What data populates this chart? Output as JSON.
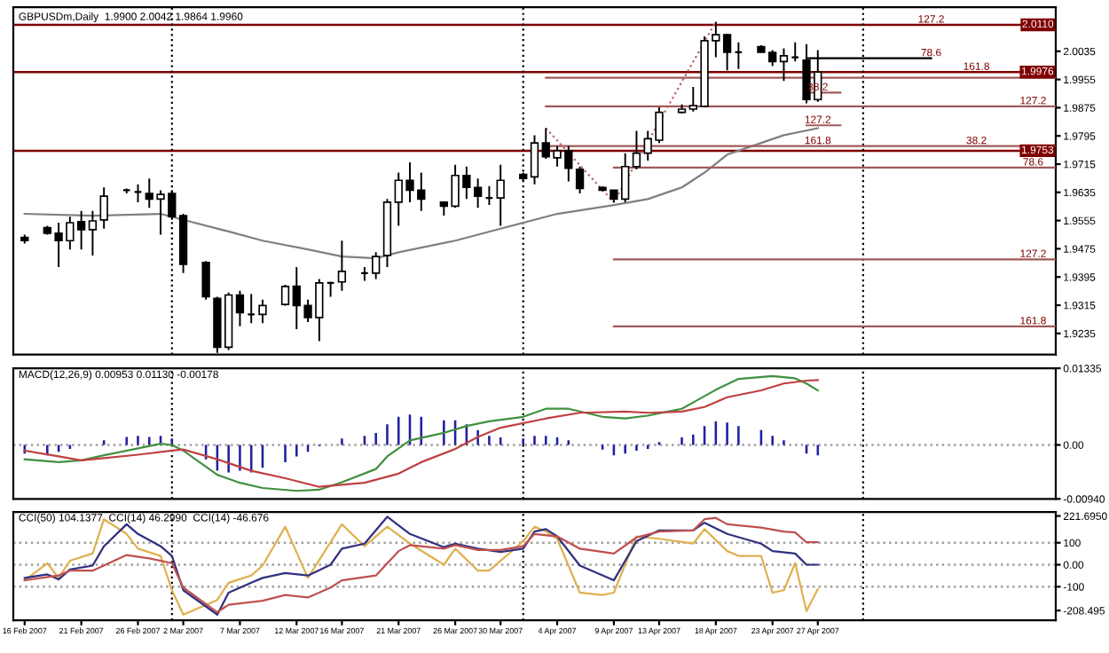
{
  "chart_data": [
    {
      "type": "candlestick",
      "title": "GBPUSDm,Daily  1.9900 2.0042 1.9864 1.9960",
      "tick_labels": "y",
      "x": [
        "2007-02-16",
        "2007-02-18",
        "2007-02-19",
        "2007-02-20",
        "2007-02-21",
        "2007-02-22",
        "2007-02-23",
        "2007-02-25",
        "2007-02-26",
        "2007-02-27",
        "2007-02-28",
        "2007-03-01",
        "2007-03-02",
        "2007-03-04",
        "2007-03-05",
        "2007-03-06",
        "2007-03-07",
        "2007-03-08",
        "2007-03-09",
        "2007-03-11",
        "2007-03-12",
        "2007-03-13",
        "2007-03-14",
        "2007-03-15",
        "2007-03-16",
        "2007-03-18",
        "2007-03-19",
        "2007-03-20",
        "2007-03-21",
        "2007-03-22",
        "2007-03-23",
        "2007-03-25",
        "2007-03-26",
        "2007-03-27",
        "2007-03-28",
        "2007-03-29",
        "2007-03-30",
        "2007-04-01",
        "2007-04-02",
        "2007-04-03",
        "2007-04-04",
        "2007-04-05",
        "2007-04-06",
        "2007-04-08",
        "2007-04-09",
        "2007-04-10",
        "2007-04-11",
        "2007-04-12",
        "2007-04-13",
        "2007-04-15",
        "2007-04-16",
        "2007-04-17",
        "2007-04-18",
        "2007-04-19",
        "2007-04-20",
        "2007-04-22",
        "2007-04-23",
        "2007-04-24",
        "2007-04-25",
        "2007-04-26",
        "2007-04-27"
      ],
      "ohlc": [
        [
          1.9507,
          1.9515,
          1.949,
          1.9498
        ],
        [
          1.9535,
          1.954,
          1.9515,
          1.9519
        ],
        [
          1.9519,
          1.9549,
          1.9423,
          1.9498
        ],
        [
          1.9498,
          1.9566,
          1.9473,
          1.9549
        ],
        [
          1.9552,
          1.9582,
          1.9473,
          1.9529
        ],
        [
          1.9529,
          1.9582,
          1.9456,
          1.9554
        ],
        [
          1.9557,
          1.9649,
          1.9532,
          1.9624
        ],
        [
          1.9641,
          1.9646,
          1.9632,
          1.9641
        ],
        [
          1.9636,
          1.9658,
          1.9607,
          1.9636
        ],
        [
          1.9632,
          1.9674,
          1.9591,
          1.9616
        ],
        [
          1.9616,
          1.9641,
          1.9515,
          1.9629
        ],
        [
          1.9632,
          1.9641,
          1.9557,
          1.9566
        ],
        [
          1.9569,
          1.9574,
          1.9406,
          1.9431
        ],
        [
          1.9436,
          1.944,
          1.9331,
          1.9339
        ],
        [
          1.9334,
          1.9339,
          1.918,
          1.9196
        ],
        [
          1.9196,
          1.9351,
          1.9188,
          1.9344
        ],
        [
          1.9344,
          1.9356,
          1.9255,
          1.9294
        ],
        [
          1.9289,
          1.9347,
          1.9264,
          1.9289
        ],
        [
          1.9289,
          1.9331,
          1.9264,
          1.9314
        ],
        [
          1.9317,
          1.9373,
          1.9314,
          1.9368
        ],
        [
          1.9369,
          1.9423,
          1.9247,
          1.9314
        ],
        [
          1.9314,
          1.9331,
          1.9267,
          1.928
        ],
        [
          1.928,
          1.9389,
          1.9213,
          1.9378
        ],
        [
          1.9378,
          1.9381,
          1.9339,
          1.9378
        ],
        [
          1.9381,
          1.9498,
          1.9356,
          1.9411
        ],
        [
          1.9406,
          1.9423,
          1.9384,
          1.9406
        ],
        [
          1.9406,
          1.9465,
          1.9389,
          1.9453
        ],
        [
          1.9456,
          1.9616,
          1.9423,
          1.9607
        ],
        [
          1.9607,
          1.9691,
          1.954,
          1.9669
        ],
        [
          1.9669,
          1.972,
          1.9607,
          1.9641
        ],
        [
          1.9641,
          1.9691,
          1.9582,
          1.9616
        ],
        [
          1.9607,
          1.9607,
          1.9569,
          1.9596
        ],
        [
          1.9596,
          1.9713,
          1.9591,
          1.9683
        ],
        [
          1.9683,
          1.9708,
          1.9616,
          1.9649
        ],
        [
          1.9649,
          1.9674,
          1.9591,
          1.9624
        ],
        [
          1.9619,
          1.9653,
          1.9599,
          1.9619
        ],
        [
          1.9619,
          1.9713,
          1.954,
          1.9669
        ],
        [
          1.9686,
          1.9691,
          1.9666,
          1.9674
        ],
        [
          1.9679,
          1.9797,
          1.9658,
          1.9775
        ],
        [
          1.9775,
          1.9817,
          1.973,
          1.9736
        ],
        [
          1.9733,
          1.9766,
          1.9708,
          1.9753
        ],
        [
          1.9753,
          1.9766,
          1.9666,
          1.9703
        ],
        [
          1.97,
          1.9708,
          1.9632,
          1.9646
        ],
        [
          1.9649,
          1.9652,
          1.9638,
          1.9641
        ],
        [
          1.9641,
          1.9641,
          1.9607,
          1.9616
        ],
        [
          1.9616,
          1.9746,
          1.9607,
          1.9708
        ],
        [
          1.9708,
          1.9809,
          1.97,
          1.9746
        ],
        [
          1.9746,
          1.9809,
          1.9725,
          1.9787
        ],
        [
          1.9783,
          1.9876,
          1.9775,
          1.9862
        ],
        [
          1.9862,
          1.9884,
          1.9859,
          1.9871
        ],
        [
          1.9871,
          1.9934,
          1.9864,
          1.9881
        ],
        [
          1.9879,
          2.0077,
          1.9876,
          2.0065
        ],
        [
          2.0065,
          2.0119,
          2.0018,
          2.0082
        ],
        [
          2.0082,
          2.0085,
          1.9981,
          2.0032
        ],
        [
          2.0032,
          2.006,
          1.9985,
          2.0032
        ],
        [
          2.0048,
          2.0052,
          2.0032,
          2.0032
        ],
        [
          2.0032,
          2.0038,
          1.9993,
          2.0006
        ],
        [
          2.0006,
          2.0043,
          1.9951,
          2.0022
        ],
        [
          2.0018,
          2.006,
          2.0006,
          2.0018
        ],
        [
          2.001,
          2.0055,
          1.9887,
          1.9898
        ],
        [
          1.9898,
          2.0038,
          1.9892,
          1.9976
        ]
      ],
      "series": [
        {
          "type": "line",
          "color": "#808080",
          "x": [
            "2007-02-16",
            "2007-02-22",
            "2007-02-28",
            "2007-03-02",
            "2007-03-06",
            "2007-03-09",
            "2007-03-13",
            "2007-03-16",
            "2007-03-19",
            "2007-03-21",
            "2007-03-26",
            "2007-03-30",
            "2007-04-04",
            "2007-04-09",
            "2007-04-12",
            "2007-04-15",
            "2007-04-17",
            "2007-04-19",
            "2007-04-22",
            "2007-04-24",
            "2007-04-27"
          ],
          "values": [
            1.9574,
            1.9569,
            1.9574,
            1.9557,
            1.9524,
            1.9498,
            1.9473,
            1.9453,
            1.9448,
            1.9465,
            1.9498,
            1.9532,
            1.9574,
            1.9599,
            1.9616,
            1.9649,
            1.9691,
            1.9742,
            1.9775,
            1.9797,
            1.9817
          ]
        },
        {
          "type": "line",
          "color": "#a05a5a",
          "x": [
            "2007-04-03",
            "2007-05-18"
          ],
          "values": [
            1.996,
            1.996
          ]
        },
        {
          "type": "line",
          "color": "#000000",
          "x": [
            "2007-04-26",
            "2007-05-07"
          ],
          "values": [
            2.0015,
            2.0015
          ]
        },
        {
          "type": "line",
          "color": "#a05a5a",
          "x": [
            "2007-04-03",
            "2007-05-18"
          ],
          "values": [
            1.9879,
            1.9879
          ]
        },
        {
          "type": "line",
          "color": "#a05a5a",
          "x": [
            "2007-04-26",
            "2007-04-29"
          ],
          "values": [
            1.9918,
            1.9918
          ]
        },
        {
          "type": "line",
          "color": "#a05a5a",
          "x": [
            "2007-04-26",
            "2007-04-29"
          ],
          "values": [
            1.9825,
            1.9825
          ]
        },
        {
          "type": "line",
          "color": "#a05a5a",
          "x": [
            "2007-04-03",
            "2007-05-18"
          ],
          "values": [
            1.9766,
            1.9766
          ]
        },
        {
          "type": "line",
          "color": "#a05a5a",
          "x": [
            "2007-04-09",
            "2007-05-18"
          ],
          "values": [
            1.9705,
            1.9705
          ]
        },
        {
          "type": "line",
          "color": "#a05a5a",
          "x": [
            "2007-04-09",
            "2007-05-18"
          ],
          "values": [
            1.9445,
            1.9445
          ]
        },
        {
          "type": "line",
          "color": "#a05a5a",
          "x": [
            "2007-04-09",
            "2007-05-18"
          ],
          "values": [
            1.9255,
            1.9255
          ]
        },
        {
          "type": "line",
          "color": "#c06060",
          "line_style": "dotted",
          "x": [
            "2007-04-03",
            "2007-04-09",
            "2007-04-18"
          ],
          "values": [
            1.9817,
            1.9607,
            2.0119
          ]
        }
      ],
      "xlim": [
        "2007-02-15",
        "2007-05-18"
      ],
      "ylim": [
        1.9175,
        2.016
      ],
      "yticks": [
        2.0035,
        1.9955,
        1.9875,
        1.9795,
        1.9715,
        1.9635,
        1.9555,
        1.9475,
        1.9395,
        1.9315,
        1.9235
      ],
      "ref_lines": [
        {
          "axis": "y",
          "value": 2.011,
          "label": "2.0110",
          "color": "#800000"
        },
        {
          "axis": "y",
          "value": 1.9976,
          "label": "1.9976",
          "color": "#800000"
        },
        {
          "axis": "y",
          "value": 1.9753,
          "label": "1.9753",
          "color": "#800000"
        },
        {
          "axis": "x",
          "value": "2007-03-01",
          "color": "#000000",
          "line_style": "dotted"
        },
        {
          "axis": "x",
          "value": "2007-04-01",
          "color": "#000000",
          "line_style": "dotted"
        },
        {
          "axis": "x",
          "value": "2007-05-01",
          "color": "#000000",
          "line_style": "dotted"
        }
      ],
      "annotations": [
        {
          "text": "127.2",
          "x": "2007-05-07",
          "y": 2.011
        },
        {
          "text": "161.8",
          "x": "2007-05-11",
          "y": 1.9976
        },
        {
          "text": "78.6",
          "x": "2007-05-07",
          "y": 2.0015
        },
        {
          "text": "127.2",
          "x": "2007-05-16",
          "y": 1.9879
        },
        {
          "text": "38.2",
          "x": "2007-04-27",
          "y": 1.9918
        },
        {
          "text": "127.2",
          "x": "2007-04-27",
          "y": 1.9825
        },
        {
          "text": "161.8",
          "x": "2007-04-27",
          "y": 1.9766
        },
        {
          "text": "38.2",
          "x": "2007-05-11",
          "y": 1.9766
        },
        {
          "text": "78.6",
          "x": "2007-05-16",
          "y": 1.9705
        },
        {
          "text": "127.2",
          "x": "2007-05-16",
          "y": 1.9445
        },
        {
          "text": "161.8",
          "x": "2007-05-16",
          "y": 1.9255
        }
      ]
    },
    {
      "type": "bar",
      "title": "MACD(12,26,9) 0.00953 0.01130 -0.00178",
      "tick_labels": "y",
      "x": [
        "2007-02-16",
        "2007-02-18",
        "2007-02-19",
        "2007-02-20",
        "2007-02-21",
        "2007-02-22",
        "2007-02-23",
        "2007-02-25",
        "2007-02-26",
        "2007-02-27",
        "2007-02-28",
        "2007-03-01",
        "2007-03-02",
        "2007-03-04",
        "2007-03-05",
        "2007-03-06",
        "2007-03-07",
        "2007-03-08",
        "2007-03-09",
        "2007-03-11",
        "2007-03-12",
        "2007-03-13",
        "2007-03-14",
        "2007-03-15",
        "2007-03-16",
        "2007-03-18",
        "2007-03-19",
        "2007-03-20",
        "2007-03-21",
        "2007-03-22",
        "2007-03-23",
        "2007-03-25",
        "2007-03-26",
        "2007-03-27",
        "2007-03-28",
        "2007-03-29",
        "2007-03-30",
        "2007-04-01",
        "2007-04-02",
        "2007-04-03",
        "2007-04-04",
        "2007-04-05",
        "2007-04-06",
        "2007-04-08",
        "2007-04-09",
        "2007-04-10",
        "2007-04-11",
        "2007-04-12",
        "2007-04-13",
        "2007-04-15",
        "2007-04-16",
        "2007-04-17",
        "2007-04-18",
        "2007-04-19",
        "2007-04-20",
        "2007-04-22",
        "2007-04-23",
        "2007-04-24",
        "2007-04-25",
        "2007-04-26",
        "2007-04-27"
      ],
      "series": [
        {
          "type": "bar",
          "color": "#2020a0",
          "values": [
            -0.0015,
            -0.0018,
            -0.0012,
            -0.0007,
            null,
            0.0,
            0.0008,
            0.0014,
            0.0016,
            0.0014,
            0.0016,
            0.0011,
            null,
            -0.0025,
            -0.0045,
            -0.0048,
            -0.0045,
            -0.0048,
            -0.004,
            -0.003,
            -0.002,
            -0.0012,
            -0.0002,
            0.0,
            0.0011,
            0.0016,
            0.0021,
            0.0036,
            0.0049,
            0.0053,
            0.0049,
            0.0043,
            0.0043,
            0.0036,
            0.0026,
            0.0016,
            0.0013,
            0.0011,
            0.0016,
            0.0016,
            0.0013,
            0.0008,
            null,
            -0.0008,
            -0.0018,
            -0.0015,
            -0.001,
            -0.0007,
            0.0005,
            0.0013,
            0.0018,
            0.0033,
            0.0041,
            0.0039,
            0.0033,
            0.0026,
            0.0016,
            0.0008,
            null,
            -0.0015,
            -0.0018
          ]
        },
        {
          "type": "line",
          "color": "#409040",
          "x": [
            "2007-02-16",
            "2007-02-19",
            "2007-02-21",
            "2007-02-23",
            "2007-02-26",
            "2007-02-28",
            "2007-03-01",
            "2007-03-02",
            "2007-03-05",
            "2007-03-07",
            "2007-03-09",
            "2007-03-12",
            "2007-03-14",
            "2007-03-16",
            "2007-03-19",
            "2007-03-20",
            "2007-03-22",
            "2007-03-25",
            "2007-03-27",
            "2007-03-29",
            "2007-04-01",
            "2007-04-03",
            "2007-04-05",
            "2007-04-08",
            "2007-04-10",
            "2007-04-12",
            "2007-04-15",
            "2007-04-16",
            "2007-04-18",
            "2007-04-20",
            "2007-04-23",
            "2007-04-25",
            "2007-04-26",
            "2007-04-27"
          ],
          "values": [
            -0.0025,
            -0.003,
            -0.0027,
            -0.0018,
            -0.0006,
            0.0002,
            0.0,
            -0.001,
            -0.0052,
            -0.0066,
            -0.0075,
            -0.008,
            -0.0078,
            -0.0065,
            -0.0042,
            -0.002,
            0.0008,
            0.0021,
            0.0033,
            0.0041,
            0.0049,
            0.0063,
            0.0063,
            0.0049,
            0.0046,
            0.0051,
            0.0063,
            0.0074,
            0.0096,
            0.0115,
            0.012,
            0.0116,
            0.0107,
            0.0095
          ]
        },
        {
          "type": "line",
          "color": "#c04040",
          "x": [
            "2007-02-16",
            "2007-02-19",
            "2007-02-21",
            "2007-02-23",
            "2007-02-26",
            "2007-03-01",
            "2007-03-02",
            "2007-03-05",
            "2007-03-08",
            "2007-03-11",
            "2007-03-14",
            "2007-03-18",
            "2007-03-21",
            "2007-03-23",
            "2007-03-26",
            "2007-03-28",
            "2007-03-30",
            "2007-04-03",
            "2007-04-06",
            "2007-04-10",
            "2007-04-12",
            "2007-04-15",
            "2007-04-17",
            "2007-04-19",
            "2007-04-22",
            "2007-04-24",
            "2007-04-26",
            "2007-04-27"
          ],
          "values": [
            -0.001,
            -0.002,
            -0.0027,
            -0.0023,
            -0.0017,
            -0.001,
            -0.0008,
            -0.0025,
            -0.0045,
            -0.0058,
            -0.0073,
            -0.0066,
            -0.005,
            -0.003,
            -0.0007,
            0.0014,
            0.003,
            0.0046,
            0.0056,
            0.0058,
            0.0056,
            0.0058,
            0.0066,
            0.0083,
            0.0095,
            0.0107,
            0.0112,
            0.0113
          ]
        }
      ],
      "xlim": [
        "2007-02-15",
        "2007-05-18"
      ],
      "ylim": [
        -0.0094,
        0.01335
      ],
      "yticks": [
        0.01335,
        {
          "value": 0,
          "label": "0.00"
        },
        {
          "value": -0.0094,
          "label": "-0.00940"
        }
      ],
      "ref_lines": [
        {
          "axis": "y",
          "value": 0,
          "color": "#a0a0a0",
          "line_style": "dotted"
        },
        {
          "axis": "x",
          "value": "2007-03-01",
          "color": "#000000",
          "line_style": "dotted"
        },
        {
          "axis": "x",
          "value": "2007-04-01",
          "color": "#000000",
          "line_style": "dotted"
        },
        {
          "axis": "x",
          "value": "2007-05-01",
          "color": "#000000",
          "line_style": "dotted"
        }
      ]
    },
    {
      "type": "line",
      "title": "CCI(50) 104.1377  CCI(14) 46.2990  CCI(14) -46.676",
      "series": [
        {
          "color": "#e0b050",
          "x": [
            "2007-02-16",
            "2007-02-18",
            "2007-02-19",
            "2007-02-20",
            "2007-02-22",
            "2007-02-23",
            "2007-02-25",
            "2007-02-26",
            "2007-02-28",
            "2007-03-01",
            "2007-03-02",
            "2007-03-05",
            "2007-03-06",
            "2007-03-08",
            "2007-03-09",
            "2007-03-11",
            "2007-03-13",
            "2007-03-16",
            "2007-03-18",
            "2007-03-20",
            "2007-03-22",
            "2007-03-25",
            "2007-03-26",
            "2007-03-28",
            "2007-03-29",
            "2007-04-01",
            "2007-04-02",
            "2007-04-03",
            "2007-04-04",
            "2007-04-06",
            "2007-04-08",
            "2007-04-09",
            "2007-04-11",
            "2007-04-13",
            "2007-04-16",
            "2007-04-17",
            "2007-04-19",
            "2007-04-20",
            "2007-04-22",
            "2007-04-23",
            "2007-04-24",
            "2007-04-25",
            "2007-04-26",
            "2007-04-27"
          ],
          "values": [
            -71,
            7,
            -60,
            18,
            51,
            207,
            140,
            73,
            40,
            -116,
            -227,
            -160,
            -82,
            -49,
            -4,
            173,
            -60,
            184,
            84,
            173,
            96,
            0,
            73,
            -27,
            -27,
            107,
            173,
            151,
            118,
            -127,
            -138,
            -127,
            129,
            118,
            96,
            162,
            62,
            40,
            40,
            -127,
            -116,
            7,
            -211,
            -111
          ]
        },
        {
          "color": "#303080",
          "x": [
            "2007-02-16",
            "2007-02-18",
            "2007-02-19",
            "2007-02-20",
            "2007-02-22",
            "2007-02-23",
            "2007-02-25",
            "2007-02-26",
            "2007-02-28",
            "2007-03-01",
            "2007-03-02",
            "2007-03-05",
            "2007-03-06",
            "2007-03-08",
            "2007-03-09",
            "2007-03-11",
            "2007-03-13",
            "2007-03-15",
            "2007-03-16",
            "2007-03-18",
            "2007-03-20",
            "2007-03-22",
            "2007-03-25",
            "2007-03-26",
            "2007-03-28",
            "2007-03-30",
            "2007-04-01",
            "2007-04-02",
            "2007-04-03",
            "2007-04-04",
            "2007-04-06",
            "2007-04-09",
            "2007-04-11",
            "2007-04-13",
            "2007-04-16",
            "2007-04-17",
            "2007-04-19",
            "2007-04-22",
            "2007-04-23",
            "2007-04-25",
            "2007-04-26",
            "2007-04-27"
          ],
          "values": [
            -60,
            -44,
            -67,
            -22,
            -4,
            84,
            184,
            140,
            84,
            40,
            -116,
            -227,
            -127,
            -82,
            -60,
            -38,
            -49,
            0,
            73,
            96,
            218,
            140,
            80,
            96,
            73,
            58,
            73,
            151,
            162,
            129,
            -4,
            -71,
            107,
            156,
            156,
            191,
            140,
            96,
            62,
            51,
            0,
            0
          ]
        },
        {
          "color": "#c05050",
          "x": [
            "2007-02-16",
            "2007-02-19",
            "2007-02-20",
            "2007-02-22",
            "2007-02-25",
            "2007-02-27",
            "2007-03-01",
            "2007-03-02",
            "2007-03-05",
            "2007-03-06",
            "2007-03-09",
            "2007-03-11",
            "2007-03-13",
            "2007-03-15",
            "2007-03-16",
            "2007-03-19",
            "2007-03-21",
            "2007-03-22",
            "2007-03-25",
            "2007-03-26",
            "2007-03-28",
            "2007-03-30",
            "2007-04-01",
            "2007-04-02",
            "2007-04-04",
            "2007-04-06",
            "2007-04-09",
            "2007-04-11",
            "2007-04-13",
            "2007-04-16",
            "2007-04-17",
            "2007-04-18",
            "2007-04-19",
            "2007-04-22",
            "2007-04-24",
            "2007-04-25",
            "2007-04-26",
            "2007-04-27"
          ],
          "values": [
            -71,
            -49,
            -27,
            -27,
            44,
            29,
            7,
            -104,
            -216,
            -182,
            -164,
            -138,
            -149,
            -104,
            -71,
            -49,
            62,
            89,
            73,
            89,
            67,
            67,
            84,
            140,
            129,
            73,
            51,
            124,
            151,
            156,
            207,
            213,
            184,
            169,
            151,
            147,
            102,
            102
          ]
        }
      ],
      "xlim": [
        "2007-02-15",
        "2007-05-18"
      ],
      "ylim": [
        -253,
        240
      ],
      "xticks": [
        {
          "value": "2007-02-16",
          "label": "16 Feb 2007"
        },
        {
          "value": "2007-02-21",
          "label": "21 Feb 2007"
        },
        {
          "value": "2007-02-26",
          "label": "26 Feb 2007"
        },
        {
          "value": "2007-03-02",
          "label": "2 Mar 2007"
        },
        {
          "value": "2007-03-07",
          "label": "7 Mar 2007"
        },
        {
          "value": "2007-03-12",
          "label": "12 Mar 2007"
        },
        {
          "value": "2007-03-16",
          "label": "16 Mar 2007"
        },
        {
          "value": "2007-03-21",
          "label": "21 Mar 2007"
        },
        {
          "value": "2007-03-26",
          "label": "26 Mar 2007"
        },
        {
          "value": "2007-03-30",
          "label": "30 Mar 2007"
        },
        {
          "value": "2007-04-04",
          "label": "4 Apr 2007"
        },
        {
          "value": "2007-04-09",
          "label": "9 Apr 2007"
        },
        {
          "value": "2007-04-13",
          "label": "13 Apr 2007"
        },
        {
          "value": "2007-04-18",
          "label": "18 Apr 2007"
        },
        {
          "value": "2007-04-23",
          "label": "23 Apr 2007"
        },
        {
          "value": "2007-04-27",
          "label": "27 Apr 2007"
        }
      ],
      "yticks": [
        {
          "value": 221.695,
          "label": "221.6950"
        },
        100,
        {
          "value": 0,
          "label": "0.00"
        },
        -100,
        {
          "value": -208.495,
          "label": "-208.495"
        }
      ],
      "ref_lines": [
        {
          "axis": "y",
          "value": 100,
          "color": "#a0a0a0",
          "line_style": "dotted"
        },
        {
          "axis": "y",
          "value": 0,
          "color": "#a0a0a0",
          "line_style": "dotted"
        },
        {
          "axis": "y",
          "value": -100,
          "color": "#a0a0a0",
          "line_style": "dotted"
        },
        {
          "axis": "x",
          "value": "2007-03-01",
          "color": "#000000",
          "line_style": "dotted"
        },
        {
          "axis": "x",
          "value": "2007-04-01",
          "color": "#000000",
          "line_style": "dotted"
        },
        {
          "axis": "x",
          "value": "2007-05-01",
          "color": "#000000",
          "line_style": "dotted"
        }
      ]
    }
  ]
}
